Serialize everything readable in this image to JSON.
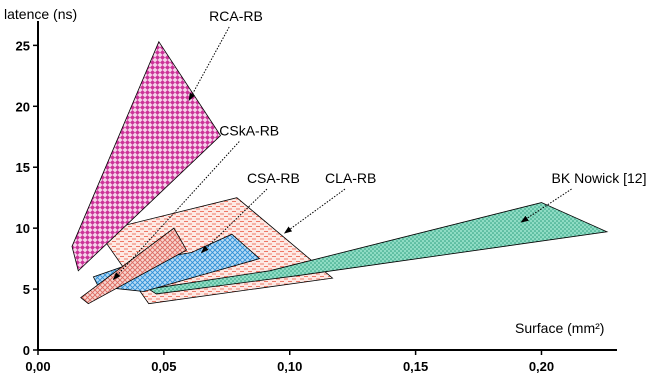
{
  "chart_data": {
    "type": "area",
    "title": "",
    "xlabel": "Surface (mm²)",
    "ylabel": "latence (ns)",
    "xlim": [
      0,
      0.23
    ],
    "ylim": [
      0,
      27
    ],
    "x_ticks": [
      "0,00",
      "0,05",
      "0,10",
      "0,15",
      "0,20"
    ],
    "x_tick_values": [
      0,
      0.05,
      0.1,
      0.15,
      0.2
    ],
    "y_ticks": [
      "0",
      "5",
      "10",
      "15",
      "20",
      "25"
    ],
    "y_tick_values": [
      0,
      5,
      10,
      15,
      20,
      25
    ],
    "grid": false,
    "legend": "none",
    "series": [
      {
        "name": "RCA-RB",
        "color": "#cc3399",
        "pattern": "diamonds",
        "polygon": [
          [
            0.0135,
            8.5
          ],
          [
            0.048,
            25.3
          ],
          [
            0.0725,
            17.6
          ],
          [
            0.016,
            6.5
          ]
        ],
        "label_pos": [
          0.068,
          27.0
        ],
        "arrow_to": [
          0.06,
          20.5
        ]
      },
      {
        "name": "CSkA-RB",
        "color": "#e87a70",
        "pattern": "crosshatch",
        "polygon": [
          [
            0.017,
            4.3
          ],
          [
            0.054,
            10.0
          ],
          [
            0.059,
            8.2
          ],
          [
            0.02,
            3.8
          ]
        ],
        "label_pos": [
          0.072,
          17.6
        ],
        "arrow_to": [
          0.03,
          5.8
        ]
      },
      {
        "name": "CSA-RB",
        "color": "#3399dd",
        "pattern": "crosshatch",
        "polygon": [
          [
            0.022,
            6.0
          ],
          [
            0.04,
            7.3
          ],
          [
            0.061,
            8.0
          ],
          [
            0.077,
            9.5
          ],
          [
            0.088,
            7.5
          ],
          [
            0.042,
            4.8
          ],
          [
            0.024,
            5.2
          ]
        ],
        "label_pos": [
          0.083,
          13.7
        ],
        "arrow_to": [
          0.065,
          8.0
        ]
      },
      {
        "name": "CLA-RB",
        "color": "#ee7766",
        "pattern": "dashes",
        "polygon": [
          [
            0.024,
            9.7
          ],
          [
            0.079,
            12.5
          ],
          [
            0.117,
            5.9
          ],
          [
            0.044,
            3.8
          ]
        ],
        "label_pos": [
          0.114,
          13.7
        ],
        "arrow_to": [
          0.098,
          9.6
        ]
      },
      {
        "name": "BK Nowick [12]",
        "color": "#33bb99",
        "pattern": "dots",
        "polygon": [
          [
            0.044,
            5.0
          ],
          [
            0.092,
            6.5
          ],
          [
            0.2,
            12.1
          ],
          [
            0.226,
            9.7
          ],
          [
            0.103,
            6.1
          ],
          [
            0.047,
            4.6
          ]
        ],
        "label_pos": [
          0.204,
          13.7
        ],
        "arrow_to": [
          0.192,
          10.5
        ]
      }
    ]
  }
}
